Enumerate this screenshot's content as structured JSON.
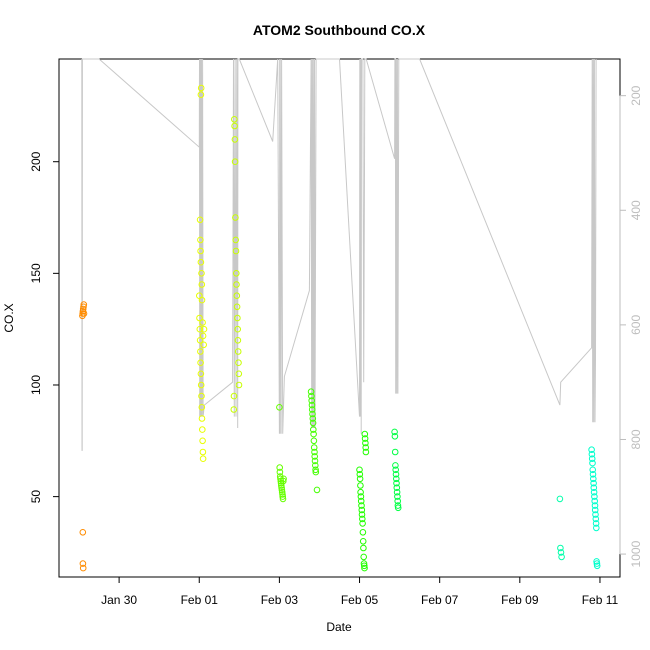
{
  "chart_data": {
    "type": "scatter",
    "title": "ATOM2 Southbound CO.X",
    "xlabel": "Date",
    "ylabel": "CO.X",
    "x_ticks": [
      "Jan 30",
      "Feb 01",
      "Feb 03",
      "Feb 05",
      "Feb 07",
      "Feb 09",
      "Feb 11"
    ],
    "xlim": [
      "2016-01-28 12:00",
      "2016-02-11 12:00"
    ],
    "ylim": [
      14,
      246
    ],
    "y_ticks": [
      50,
      100,
      150,
      200
    ],
    "y2_ticks": [
      200,
      400,
      600,
      800,
      1000
    ],
    "y2lim": [
      1040,
      136
    ],
    "y2_reversed": true,
    "grid": false,
    "colors": {
      "orange": "#ff8c00",
      "yellow": "#e8ff00",
      "yellow_green": "#c8ff00",
      "green": "#66ff00",
      "bright_green": "#22ff00",
      "green2": "#00ff44",
      "teal": "#00ffaa",
      "cyan": "#00ffcc",
      "trace": "#c8c8c8"
    },
    "series": [
      {
        "color": "#ff8c00",
        "points": [
          [
            "2016-01-29 02:00",
            131
          ],
          [
            "2016-01-29 02:10",
            132
          ],
          [
            "2016-01-29 02:20",
            133
          ],
          [
            "2016-01-29 02:30",
            134
          ],
          [
            "2016-01-29 02:40",
            135
          ],
          [
            "2016-01-29 02:50",
            136
          ],
          [
            "2016-01-29 03:00",
            132
          ],
          [
            "2016-01-29 02:15",
            34
          ],
          [
            "2016-01-29 02:20",
            20
          ],
          [
            "2016-01-29 02:30",
            18
          ]
        ]
      },
      {
        "color": "#e8ff00",
        "points": [
          [
            "2016-02-01 00:00",
            140
          ],
          [
            "2016-02-01 00:10",
            130
          ],
          [
            "2016-02-01 00:20",
            125
          ],
          [
            "2016-02-01 00:30",
            120
          ],
          [
            "2016-02-01 00:40",
            115
          ],
          [
            "2016-02-01 00:50",
            110
          ],
          [
            "2016-02-01 01:00",
            105
          ],
          [
            "2016-02-01 01:10",
            100
          ],
          [
            "2016-02-01 01:20",
            95
          ],
          [
            "2016-02-01 01:30",
            90
          ],
          [
            "2016-02-01 01:40",
            85
          ],
          [
            "2016-02-01 01:50",
            80
          ],
          [
            "2016-02-01 02:00",
            75
          ],
          [
            "2016-02-01 02:10",
            70
          ],
          [
            "2016-02-01 02:20",
            67
          ],
          [
            "2016-02-01 01:00",
            230
          ],
          [
            "2016-02-01 01:10",
            233
          ],
          [
            "2016-02-01 00:30",
            174
          ],
          [
            "2016-02-01 00:40",
            165
          ],
          [
            "2016-02-01 00:50",
            160
          ],
          [
            "2016-02-01 01:00",
            155
          ],
          [
            "2016-02-01 01:20",
            150
          ],
          [
            "2016-02-01 01:30",
            145
          ],
          [
            "2016-02-01 01:40",
            138
          ],
          [
            "2016-02-01 02:00",
            128
          ],
          [
            "2016-02-01 02:20",
            122
          ],
          [
            "2016-02-01 02:40",
            118
          ],
          [
            "2016-02-01 02:50",
            125
          ]
        ]
      },
      {
        "color": "#c8ff00",
        "points": [
          [
            "2016-02-01 21:00",
            219
          ],
          [
            "2016-02-01 21:10",
            216
          ],
          [
            "2016-02-01 21:20",
            210
          ],
          [
            "2016-02-01 21:30",
            200
          ],
          [
            "2016-02-01 21:40",
            175
          ],
          [
            "2016-02-01 21:50",
            165
          ],
          [
            "2016-02-01 22:00",
            160
          ],
          [
            "2016-02-01 22:10",
            150
          ],
          [
            "2016-02-01 22:20",
            145
          ],
          [
            "2016-02-01 22:30",
            140
          ],
          [
            "2016-02-01 22:40",
            135
          ],
          [
            "2016-02-01 22:50",
            130
          ],
          [
            "2016-02-01 23:00",
            125
          ],
          [
            "2016-02-01 23:10",
            120
          ],
          [
            "2016-02-01 23:20",
            115
          ],
          [
            "2016-02-01 23:30",
            110
          ],
          [
            "2016-02-01 23:40",
            105
          ],
          [
            "2016-02-01 23:50",
            100
          ],
          [
            "2016-02-01 20:50",
            95
          ],
          [
            "2016-02-01 20:40",
            89
          ]
        ]
      },
      {
        "color": "#66ff00",
        "points": [
          [
            "2016-02-03 00:00",
            90
          ],
          [
            "2016-02-03 00:10",
            63
          ],
          [
            "2016-02-03 00:20",
            61
          ],
          [
            "2016-02-03 00:30",
            59
          ],
          [
            "2016-02-03 00:40",
            58
          ],
          [
            "2016-02-03 00:50",
            57
          ],
          [
            "2016-02-03 01:00",
            56
          ],
          [
            "2016-02-03 01:10",
            55
          ],
          [
            "2016-02-03 01:20",
            54
          ],
          [
            "2016-02-03 01:30",
            53
          ],
          [
            "2016-02-03 01:40",
            52
          ],
          [
            "2016-02-03 01:50",
            51
          ],
          [
            "2016-02-03 02:00",
            50
          ],
          [
            "2016-02-03 02:10",
            49
          ],
          [
            "2016-02-03 02:20",
            57
          ],
          [
            "2016-02-03 02:30",
            58
          ]
        ]
      },
      {
        "color": "#44ff00",
        "points": [
          [
            "2016-02-03 19:00",
            97
          ],
          [
            "2016-02-03 19:10",
            95
          ],
          [
            "2016-02-03 19:20",
            93
          ],
          [
            "2016-02-03 19:30",
            91
          ],
          [
            "2016-02-03 19:40",
            89
          ],
          [
            "2016-02-03 19:50",
            87
          ],
          [
            "2016-02-03 20:00",
            85
          ],
          [
            "2016-02-03 20:10",
            83
          ],
          [
            "2016-02-03 20:20",
            80
          ],
          [
            "2016-02-03 20:30",
            78
          ],
          [
            "2016-02-03 20:40",
            75
          ],
          [
            "2016-02-03 20:50",
            72
          ],
          [
            "2016-02-03 21:00",
            70
          ],
          [
            "2016-02-03 21:10",
            68
          ],
          [
            "2016-02-03 21:20",
            66
          ],
          [
            "2016-02-03 21:30",
            64
          ],
          [
            "2016-02-03 21:40",
            62
          ],
          [
            "2016-02-03 21:50",
            61
          ],
          [
            "2016-02-03 22:30",
            53
          ]
        ]
      },
      {
        "color": "#22ff00",
        "points": [
          [
            "2016-02-05 00:00",
            62
          ],
          [
            "2016-02-05 00:10",
            60
          ],
          [
            "2016-02-05 00:20",
            58
          ],
          [
            "2016-02-05 00:30",
            55
          ],
          [
            "2016-02-05 00:40",
            52
          ],
          [
            "2016-02-05 00:50",
            50
          ],
          [
            "2016-02-05 01:00",
            48
          ],
          [
            "2016-02-05 01:10",
            46
          ],
          [
            "2016-02-05 01:20",
            44
          ],
          [
            "2016-02-05 01:30",
            42
          ],
          [
            "2016-02-05 01:40",
            40
          ],
          [
            "2016-02-05 01:50",
            38
          ],
          [
            "2016-02-05 02:00",
            34
          ],
          [
            "2016-02-05 02:10",
            30
          ],
          [
            "2016-02-05 02:20",
            27
          ],
          [
            "2016-02-05 02:30",
            23
          ],
          [
            "2016-02-05 02:40",
            20
          ],
          [
            "2016-02-05 02:50",
            19
          ],
          [
            "2016-02-05 03:00",
            18
          ],
          [
            "2016-02-05 03:10",
            78
          ],
          [
            "2016-02-05 03:20",
            76
          ],
          [
            "2016-02-05 03:30",
            74
          ],
          [
            "2016-02-05 03:40",
            72
          ],
          [
            "2016-02-05 03:50",
            70
          ]
        ]
      },
      {
        "color": "#00ff44",
        "points": [
          [
            "2016-02-05 21:00",
            79
          ],
          [
            "2016-02-05 21:10",
            77
          ],
          [
            "2016-02-05 21:20",
            70
          ],
          [
            "2016-02-05 21:30",
            64
          ],
          [
            "2016-02-05 21:40",
            62
          ],
          [
            "2016-02-05 21:50",
            60
          ],
          [
            "2016-02-05 22:00",
            58
          ],
          [
            "2016-02-05 22:10",
            56
          ],
          [
            "2016-02-05 22:20",
            54
          ],
          [
            "2016-02-05 22:30",
            52
          ],
          [
            "2016-02-05 22:40",
            50
          ],
          [
            "2016-02-05 22:50",
            48
          ],
          [
            "2016-02-05 23:00",
            46
          ],
          [
            "2016-02-05 23:10",
            45
          ]
        ]
      },
      {
        "color": "#00ffaa",
        "points": [
          [
            "2016-02-10 00:00",
            49
          ],
          [
            "2016-02-10 00:20",
            27
          ],
          [
            "2016-02-10 00:40",
            25
          ],
          [
            "2016-02-10 01:00",
            23
          ]
        ]
      },
      {
        "color": "#00ffcc",
        "points": [
          [
            "2016-02-10 19:00",
            71
          ],
          [
            "2016-02-10 19:10",
            69
          ],
          [
            "2016-02-10 19:20",
            67
          ],
          [
            "2016-02-10 19:30",
            65
          ],
          [
            "2016-02-10 19:40",
            62
          ],
          [
            "2016-02-10 19:50",
            60
          ],
          [
            "2016-02-10 20:00",
            58
          ],
          [
            "2016-02-10 20:10",
            56
          ],
          [
            "2016-02-10 20:20",
            54
          ],
          [
            "2016-02-10 20:30",
            52
          ],
          [
            "2016-02-10 20:40",
            50
          ],
          [
            "2016-02-10 20:50",
            48
          ],
          [
            "2016-02-10 21:00",
            46
          ],
          [
            "2016-02-10 21:10",
            44
          ],
          [
            "2016-02-10 21:20",
            42
          ],
          [
            "2016-02-10 21:30",
            40
          ],
          [
            "2016-02-10 21:40",
            38
          ],
          [
            "2016-02-10 21:50",
            36
          ],
          [
            "2016-02-10 22:00",
            21
          ],
          [
            "2016-02-10 22:10",
            20
          ],
          [
            "2016-02-10 22:20",
            19
          ]
        ]
      }
    ],
    "depth_trace": {
      "color": "#c8c8c8",
      "axis": "right",
      "points": [
        [
          "2016-01-29 01:40",
          136
        ],
        [
          "2016-01-29 01:45",
          820
        ],
        [
          "2016-01-29 01:50",
          136
        ],
        [
          "2016-01-29 01:55",
          820
        ],
        [
          "2016-01-29 02:00",
          136
        ],
        [
          "2016-01-29 12:00",
          136
        ],
        [
          "2016-02-01 00:00",
          290
        ],
        [
          "2016-02-01 00:10",
          136
        ],
        [
          "2016-02-01 00:15",
          760
        ],
        [
          "2016-02-01 00:20",
          136
        ],
        [
          "2016-02-01 00:25",
          760
        ],
        [
          "2016-02-01 00:30",
          136
        ],
        [
          "2016-02-01 00:35",
          760
        ],
        [
          "2016-02-01 00:40",
          136
        ],
        [
          "2016-02-01 00:45",
          760
        ],
        [
          "2016-02-01 01:00",
          136
        ],
        [
          "2016-02-01 01:10",
          760
        ],
        [
          "2016-02-01 01:20",
          136
        ],
        [
          "2016-02-01 01:40",
          760
        ],
        [
          "2016-02-01 02:00",
          136
        ],
        [
          "2016-02-01 02:20",
          760
        ],
        [
          "2016-02-01 03:00",
          740
        ],
        [
          "2016-02-01 20:00",
          700
        ],
        [
          "2016-02-01 20:30",
          136
        ],
        [
          "2016-02-01 21:00",
          760
        ],
        [
          "2016-02-01 21:30",
          136
        ],
        [
          "2016-02-01 22:00",
          760
        ],
        [
          "2016-02-01 22:30",
          136
        ],
        [
          "2016-02-01 23:00",
          780
        ],
        [
          "2016-02-01 23:10",
          136
        ],
        [
          "2016-02-02 00:00",
          136
        ],
        [
          "2016-02-02 20:00",
          280
        ],
        [
          "2016-02-02 23:00",
          136
        ],
        [
          "2016-02-03 00:00",
          790
        ],
        [
          "2016-02-03 00:10",
          136
        ],
        [
          "2016-02-03 00:20",
          790
        ],
        [
          "2016-02-03 00:30",
          136
        ],
        [
          "2016-02-03 01:00",
          790
        ],
        [
          "2016-02-03 01:20",
          136
        ],
        [
          "2016-02-03 02:00",
          790
        ],
        [
          "2016-02-03 03:00",
          690
        ],
        [
          "2016-02-03 18:00",
          540
        ],
        [
          "2016-02-03 19:00",
          136
        ],
        [
          "2016-02-03 19:20",
          780
        ],
        [
          "2016-02-03 19:40",
          136
        ],
        [
          "2016-02-03 20:00",
          780
        ],
        [
          "2016-02-03 20:20",
          136
        ],
        [
          "2016-02-03 20:40",
          780
        ],
        [
          "2016-02-03 21:00",
          136
        ],
        [
          "2016-02-03 21:20",
          780
        ],
        [
          "2016-02-03 22:00",
          136
        ],
        [
          "2016-02-04 12:00",
          136
        ],
        [
          "2016-02-05 00:00",
          760
        ],
        [
          "2016-02-05 00:10",
          136
        ],
        [
          "2016-02-05 00:20",
          760
        ],
        [
          "2016-02-05 00:30",
          136
        ],
        [
          "2016-02-05 00:40",
          760
        ],
        [
          "2016-02-05 00:50",
          136
        ],
        [
          "2016-02-05 01:00",
          790
        ],
        [
          "2016-02-05 01:10",
          136
        ],
        [
          "2016-02-05 02:00",
          136
        ],
        [
          "2016-02-05 02:30",
          700
        ],
        [
          "2016-02-05 03:00",
          330
        ],
        [
          "2016-02-05 03:10",
          136
        ],
        [
          "2016-02-05 04:00",
          136
        ],
        [
          "2016-02-05 21:00",
          310
        ],
        [
          "2016-02-05 21:10",
          136
        ],
        [
          "2016-02-05 21:30",
          136
        ],
        [
          "2016-02-05 21:40",
          720
        ],
        [
          "2016-02-05 22:00",
          136
        ],
        [
          "2016-02-05 22:20",
          720
        ],
        [
          "2016-02-05 22:40",
          136
        ],
        [
          "2016-02-05 23:00",
          720
        ],
        [
          "2016-02-05 23:30",
          136
        ],
        [
          "2016-02-06 00:00",
          136
        ],
        [
          "2016-02-06 12:00",
          136
        ],
        [
          "2016-02-10 00:00",
          740
        ],
        [
          "2016-02-10 00:30",
          700
        ],
        [
          "2016-02-10 19:00",
          640
        ],
        [
          "2016-02-10 19:20",
          136
        ],
        [
          "2016-02-10 19:40",
          770
        ],
        [
          "2016-02-10 20:00",
          136
        ],
        [
          "2016-02-10 20:20",
          770
        ],
        [
          "2016-02-10 20:40",
          136
        ],
        [
          "2016-02-10 21:00",
          770
        ],
        [
          "2016-02-10 21:20",
          660
        ],
        [
          "2016-02-10 21:40",
          136
        ]
      ]
    }
  }
}
